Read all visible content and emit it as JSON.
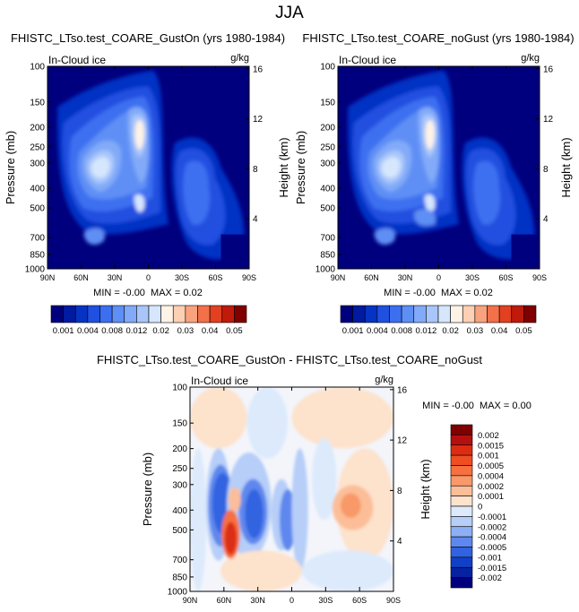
{
  "figure": {
    "title": "JJA"
  },
  "panels": [
    {
      "id": "p1",
      "title": "FHISTC_LTso.test_COARE_GustOn (yrs 1980-1984)",
      "left_label": "In-Cloud ice",
      "right_label": "g/kg",
      "stats": "MIN = -0.00  MAX = 0.02",
      "variant": "gust"
    },
    {
      "id": "p2",
      "title": "FHISTC_LTso.test_COARE_noGust (yrs 1980-1984)",
      "left_label": "In-Cloud ice",
      "right_label": "g/kg",
      "stats": "MIN = -0.00  MAX = 0.02",
      "variant": "nogust"
    },
    {
      "id": "p3",
      "title": "FHISTC_LTso.test_COARE_GustOn - FHISTC_LTso.test_COARE_noGust",
      "left_label": "In-Cloud ice",
      "right_label": "g/kg",
      "stats": "MIN = -0.00  MAX = 0.00",
      "variant": "diff"
    }
  ],
  "chart_data": {
    "type": "heatmap",
    "x_ticks": [
      "90N",
      "60N",
      "30N",
      "0",
      "30S",
      "60S",
      "90S"
    ],
    "y_ticks": [
      "100",
      "150",
      "200",
      "250",
      "300",
      "400",
      "500",
      "700",
      "850",
      "1000"
    ],
    "y_tick_values": [
      100,
      150,
      200,
      250,
      300,
      400,
      500,
      700,
      850,
      1000
    ],
    "height_ticks": [
      "16",
      "12",
      "8",
      "4"
    ],
    "height_tick_values": [
      16,
      12,
      8,
      4
    ],
    "ylabel": "Pressure (mb)",
    "y2label": "Height (km)",
    "ylim": [
      1000,
      100
    ],
    "xlim": [
      "90N",
      "90S"
    ],
    "field_colorbar": {
      "labels": [
        "0.001",
        "0.004",
        "0.008",
        "0.012",
        "0.02",
        "0.03",
        "0.04",
        "0.05"
      ],
      "levels": [
        0.001,
        0.002,
        0.004,
        0.006,
        0.008,
        0.01,
        0.012,
        0.015,
        0.02,
        0.025,
        0.03,
        0.035,
        0.04,
        0.045,
        0.05
      ],
      "colors": [
        "#00007f",
        "#001aa0",
        "#0533c4",
        "#2050e0",
        "#3c6ff0",
        "#5e8ff5",
        "#82aaf8",
        "#a9c6fb",
        "#d6e6fd",
        "#fff3e6",
        "#fdd0b3",
        "#f9a27e",
        "#f2704a",
        "#e3401f",
        "#c01a0a",
        "#800000"
      ]
    },
    "diff_colorbar": {
      "labels": [
        "0.002",
        "0.0015",
        "0.001",
        "0.0005",
        "0.0004",
        "0.0002",
        "0.0001",
        "0",
        "-0.0001",
        "-0.0002",
        "-0.0004",
        "-0.0005",
        "-0.001",
        "-0.0015",
        "-0.002"
      ],
      "colors": [
        "#7f0000",
        "#b51010",
        "#dc2d12",
        "#f04d22",
        "#f77040",
        "#f99868",
        "#fbbe98",
        "#fde2cc",
        "#dceafc",
        "#b6cef8",
        "#8daff4",
        "#5f88ee",
        "#3163e0",
        "#1140c8",
        "#0522a2",
        "#00007f"
      ]
    }
  }
}
